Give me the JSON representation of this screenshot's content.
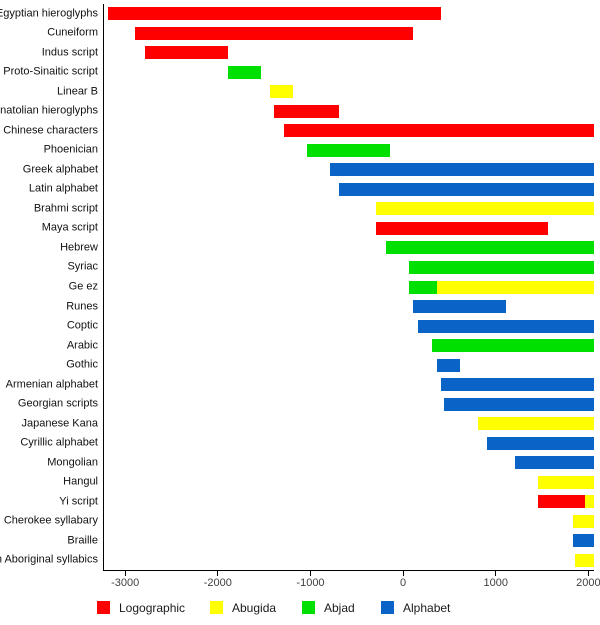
{
  "chart_data": {
    "type": "bar",
    "orientation": "horizontal",
    "title": "",
    "xlabel": "",
    "ylabel": "",
    "grid": false,
    "legend_position": "bottom",
    "x_axis": {
      "xlim": [
        -3240,
        2050
      ],
      "ticks": [
        -3000,
        -2000,
        -1000,
        0,
        1000,
        2000
      ],
      "tick_labels": [
        "-3000",
        "-2000",
        "-1000",
        "0",
        "1000",
        "2000"
      ]
    },
    "legend": [
      {
        "label": "Logographic",
        "color": "#ff0000"
      },
      {
        "label": "Abugida",
        "color": "#ffff00"
      },
      {
        "label": "Abjad",
        "color": "#00e000"
      },
      {
        "label": "Alphabet",
        "color": "#0a64c8"
      }
    ],
    "rows": [
      {
        "label": "Egyptian hieroglyphs",
        "segments": [
          {
            "start": -3200,
            "end": 400,
            "type": "Logographic"
          }
        ]
      },
      {
        "label": "Cuneiform",
        "segments": [
          {
            "start": -2900,
            "end": 100,
            "type": "Logographic"
          }
        ]
      },
      {
        "label": "Indus script",
        "segments": [
          {
            "start": -2800,
            "end": -1900,
            "type": "Logographic"
          }
        ]
      },
      {
        "label": "Proto-Sinaitic script",
        "segments": [
          {
            "start": -1900,
            "end": -1550,
            "type": "Abjad"
          }
        ]
      },
      {
        "label": "Linear B",
        "segments": [
          {
            "start": -1450,
            "end": -1200,
            "type": "Abugida"
          }
        ]
      },
      {
        "label": "Anatolian hieroglyphs",
        "segments": [
          {
            "start": -1400,
            "end": -700,
            "type": "Logographic"
          }
        ]
      },
      {
        "label": "Chinese characters",
        "segments": [
          {
            "start": -1300,
            "end": "present",
            "type": "Logographic"
          }
        ]
      },
      {
        "label": "Phoenician",
        "segments": [
          {
            "start": -1050,
            "end": -150,
            "type": "Abjad"
          }
        ]
      },
      {
        "label": "Greek alphabet",
        "segments": [
          {
            "start": -800,
            "end": "present",
            "type": "Alphabet"
          }
        ]
      },
      {
        "label": "Latin alphabet",
        "segments": [
          {
            "start": -700,
            "end": "present",
            "type": "Alphabet"
          }
        ]
      },
      {
        "label": "Brahmi script",
        "segments": [
          {
            "start": -300,
            "end": "present",
            "type": "Abugida"
          }
        ]
      },
      {
        "label": "Maya script",
        "segments": [
          {
            "start": -300,
            "end": 1550,
            "type": "Logographic"
          }
        ]
      },
      {
        "label": "Hebrew",
        "segments": [
          {
            "start": -200,
            "end": "present",
            "type": "Abjad"
          }
        ]
      },
      {
        "label": "Syriac",
        "segments": [
          {
            "start": 50,
            "end": "present",
            "type": "Abjad"
          }
        ]
      },
      {
        "label": "Ge ez",
        "segments": [
          {
            "start": 50,
            "end": 350,
            "type": "Abjad"
          },
          {
            "start": 350,
            "end": "present",
            "type": "Abugida"
          }
        ]
      },
      {
        "label": "Runes",
        "segments": [
          {
            "start": 100,
            "end": 1100,
            "type": "Alphabet"
          }
        ]
      },
      {
        "label": "Coptic",
        "segments": [
          {
            "start": 150,
            "end": "present",
            "type": "Alphabet"
          }
        ]
      },
      {
        "label": "Arabic",
        "segments": [
          {
            "start": 300,
            "end": "present",
            "type": "Abjad"
          }
        ]
      },
      {
        "label": "Gothic",
        "segments": [
          {
            "start": 350,
            "end": 600,
            "type": "Alphabet"
          }
        ]
      },
      {
        "label": "Armenian alphabet",
        "segments": [
          {
            "start": 400,
            "end": "present",
            "type": "Alphabet"
          }
        ]
      },
      {
        "label": "Georgian scripts",
        "segments": [
          {
            "start": 430,
            "end": "present",
            "type": "Alphabet"
          }
        ]
      },
      {
        "label": "Japanese Kana",
        "segments": [
          {
            "start": 800,
            "end": "present",
            "type": "Abugida"
          }
        ]
      },
      {
        "label": "Cyrillic alphabet",
        "segments": [
          {
            "start": 900,
            "end": "present",
            "type": "Alphabet"
          }
        ]
      },
      {
        "label": "Mongolian",
        "segments": [
          {
            "start": 1200,
            "end": "present",
            "type": "Alphabet"
          }
        ]
      },
      {
        "label": "Hangul",
        "segments": [
          {
            "start": 1443,
            "end": "present",
            "type": "Abugida"
          }
        ]
      },
      {
        "label": "Yi script",
        "segments": [
          {
            "start": 1450,
            "end": 1950,
            "type": "Logographic"
          },
          {
            "start": 1950,
            "end": "present",
            "type": "Abugida"
          }
        ]
      },
      {
        "label": "Cherokee syllabary",
        "segments": [
          {
            "start": 1820,
            "end": "present",
            "type": "Abugida"
          }
        ]
      },
      {
        "label": "Braille",
        "segments": [
          {
            "start": 1825,
            "end": "present",
            "type": "Alphabet"
          }
        ]
      },
      {
        "label": "n Aboriginal syllabics",
        "segments": [
          {
            "start": 1840,
            "end": "present",
            "type": "Abugida"
          }
        ]
      }
    ]
  }
}
